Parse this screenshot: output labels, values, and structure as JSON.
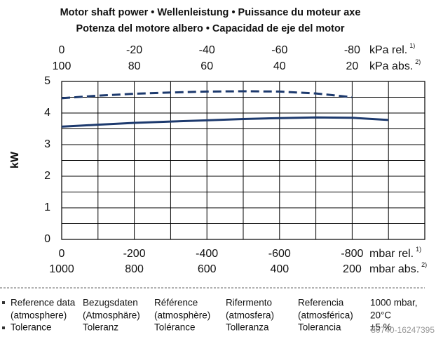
{
  "chart_data": {
    "type": "line",
    "title": [
      "Motor shaft power  •  Wellenleistung  •  Puissance du moteur axe",
      "Potenza del motore albero  •  Capacidad de eje del motor"
    ],
    "y_label": "kW",
    "xlim": [
      0,
      -1000
    ],
    "x_minor_ticks": [
      0,
      -100,
      -200,
      -300,
      -400,
      -500,
      -600,
      -700,
      -800,
      -900,
      -1000
    ],
    "ylim": [
      0,
      5
    ],
    "yticks": [
      0,
      1,
      2,
      3,
      4,
      5
    ],
    "y_minor_ticks": [
      0.5,
      1.5,
      2.5,
      3.5,
      4.5
    ],
    "grid": true,
    "x_axes": [
      {
        "position": "top",
        "row": 1,
        "label": "kPa rel.",
        "footnote": "1)",
        "lim": [
          0,
          -100
        ],
        "ticks": [
          0,
          -20,
          -40,
          -60,
          -80
        ]
      },
      {
        "position": "top",
        "row": 2,
        "label": "kPa abs.",
        "footnote": "2)",
        "lim": [
          100,
          0
        ],
        "ticks": [
          100,
          80,
          60,
          40,
          20
        ]
      },
      {
        "position": "bottom",
        "row": 1,
        "label": "mbar rel.",
        "footnote": "1)",
        "lim": [
          0,
          -1000
        ],
        "ticks": [
          0,
          -200,
          -400,
          -600,
          -800
        ]
      },
      {
        "position": "bottom",
        "row": 2,
        "label": "mbar abs.",
        "footnote": "2)",
        "lim": [
          1000,
          0
        ],
        "ticks": [
          1000,
          800,
          600,
          400,
          200
        ]
      }
    ],
    "series": [
      {
        "color": "#1d3a6e",
        "line_style": "dashed",
        "x": [
          0,
          -100,
          -200,
          -300,
          -400,
          -500,
          -600,
          -700,
          -800
        ],
        "values": [
          4.47,
          4.55,
          4.61,
          4.65,
          4.68,
          4.69,
          4.68,
          4.62,
          4.5
        ]
      },
      {
        "color": "#1d3a6e",
        "line_style": "solid",
        "x": [
          0,
          -100,
          -200,
          -300,
          -400,
          -500,
          -600,
          -700,
          -800,
          -900
        ],
        "values": [
          3.57,
          3.63,
          3.69,
          3.73,
          3.77,
          3.81,
          3.84,
          3.86,
          3.85,
          3.78
        ]
      }
    ]
  },
  "notes": {
    "rows": [
      [
        "Reference data",
        "Bezugsdaten",
        "Référence",
        "Rifermento",
        "Referencia",
        "1000 mbar,"
      ],
      [
        "(atmosphere)",
        "(Atmosphäre)",
        "(atmosphère)",
        "(atmosfera)",
        "(atmosférica)",
        "20°C"
      ],
      [
        "Tolerance",
        "Toleranz",
        "Tolérance",
        "Tolleranza",
        "Tolerancia",
        "±5 %"
      ]
    ]
  },
  "watermark": "80740-16247395"
}
